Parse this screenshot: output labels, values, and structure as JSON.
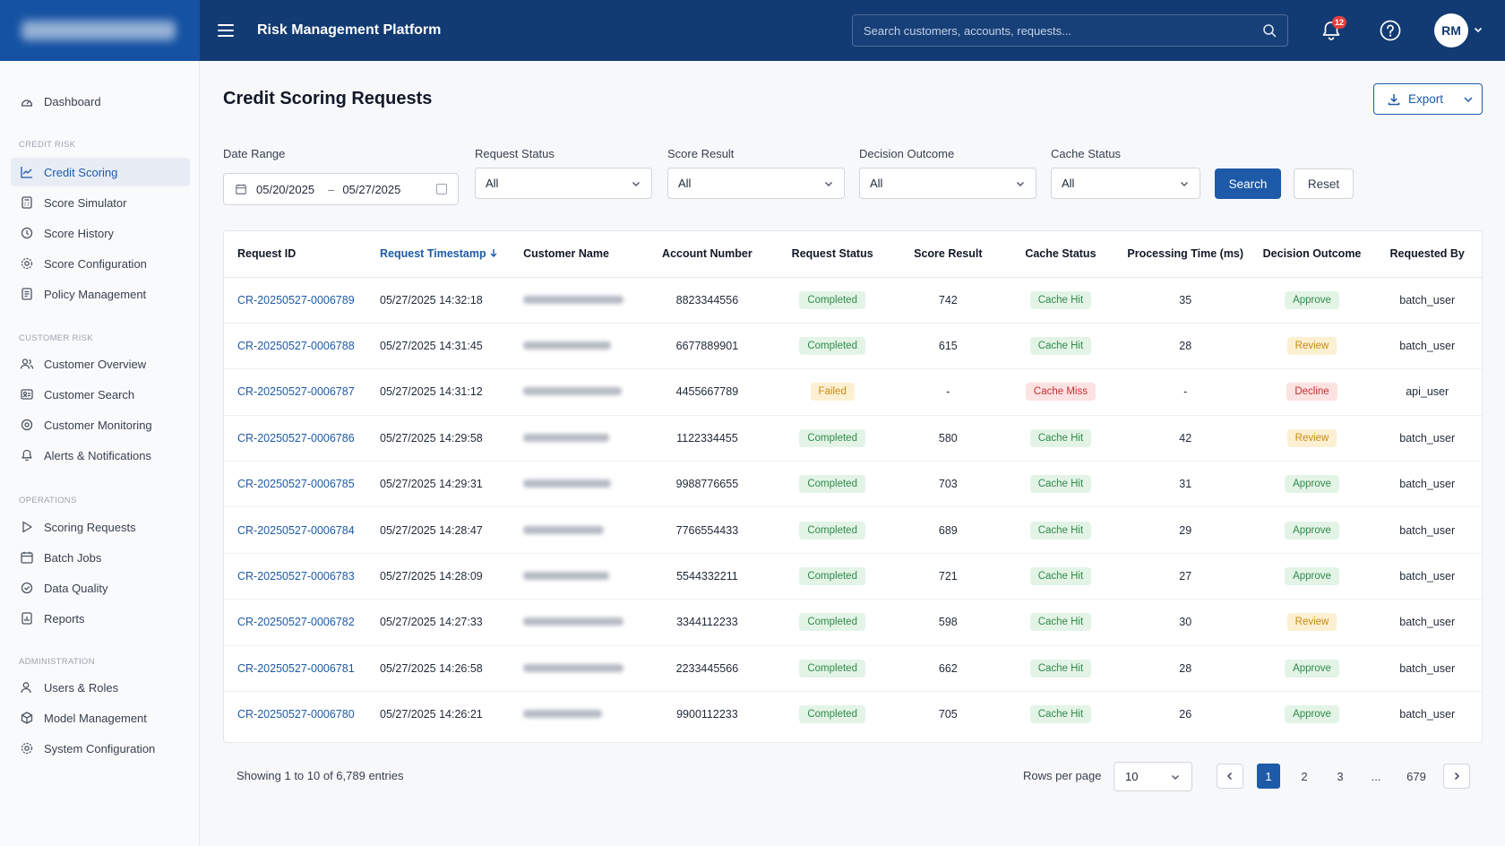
{
  "header": {
    "app_title": "Risk Management Platform",
    "search_placeholder": "Search customers, accounts, requests...",
    "notification_count": "12",
    "avatar_initials": "RM"
  },
  "sidebar": {
    "dashboard": "Dashboard",
    "sections": {
      "credit_risk": "CREDIT RISK",
      "customer_risk": "CUSTOMER RISK",
      "operations": "OPERATIONS",
      "administration": "ADMINISTRATION"
    },
    "credit_risk_items": [
      "Credit Scoring",
      "Score Simulator",
      "Score History",
      "Score Configuration",
      "Policy Management"
    ],
    "customer_risk_items": [
      "Customer Overview",
      "Customer Search",
      "Customer Monitoring",
      "Alerts & Notifications"
    ],
    "operations_items": [
      "Scoring Requests",
      "Batch Jobs",
      "Data Quality",
      "Reports"
    ],
    "administration_items": [
      "Users & Roles",
      "Model Management",
      "System Configuration"
    ],
    "active_item": "Credit Scoring"
  },
  "page": {
    "title": "Credit Scoring Requests",
    "export_label": "Export"
  },
  "filters": {
    "date_range_label": "Date Range",
    "date_from": "05/20/2025",
    "date_to": "05/27/2025",
    "request_status_label": "Request Status",
    "request_status_value": "All",
    "score_result_label": "Score Result",
    "score_result_value": "All",
    "decision_outcome_label": "Decision Outcome",
    "decision_outcome_value": "All",
    "cache_status_label": "Cache Status",
    "cache_status_value": "All",
    "search_label": "Search",
    "reset_label": "Reset"
  },
  "table": {
    "columns": [
      "Request ID",
      "Request Timestamp",
      "Customer Name",
      "Account Number",
      "Request Status",
      "Score Result",
      "Cache Status",
      "Processing Time (ms)",
      "Decision Outcome",
      "Requested By"
    ],
    "sorted_column": "Request Timestamp",
    "rows": [
      {
        "id": "CR-20250527-0006789",
        "timestamp": "05/27/2025 14:32:18",
        "account": "8823344556",
        "status": "Completed",
        "score": "742",
        "cache": "Cache Hit",
        "time": "35",
        "decision": "Approve",
        "by": "batch_user"
      },
      {
        "id": "CR-20250527-0006788",
        "timestamp": "05/27/2025 14:31:45",
        "account": "6677889901",
        "status": "Completed",
        "score": "615",
        "cache": "Cache Hit",
        "time": "28",
        "decision": "Review",
        "by": "batch_user"
      },
      {
        "id": "CR-20250527-0006787",
        "timestamp": "05/27/2025 14:31:12",
        "account": "4455667789",
        "status": "Failed",
        "score": "-",
        "cache": "Cache Miss",
        "time": "-",
        "decision": "Decline",
        "by": "api_user"
      },
      {
        "id": "CR-20250527-0006786",
        "timestamp": "05/27/2025 14:29:58",
        "account": "1122334455",
        "status": "Completed",
        "score": "580",
        "cache": "Cache Hit",
        "time": "42",
        "decision": "Review",
        "by": "batch_user"
      },
      {
        "id": "CR-20250527-0006785",
        "timestamp": "05/27/2025 14:29:31",
        "account": "9988776655",
        "status": "Completed",
        "score": "703",
        "cache": "Cache Hit",
        "time": "31",
        "decision": "Approve",
        "by": "batch_user"
      },
      {
        "id": "CR-20250527-0006784",
        "timestamp": "05/27/2025 14:28:47",
        "account": "7766554433",
        "status": "Completed",
        "score": "689",
        "cache": "Cache Hit",
        "time": "29",
        "decision": "Approve",
        "by": "batch_user"
      },
      {
        "id": "CR-20250527-0006783",
        "timestamp": "05/27/2025 14:28:09",
        "account": "5544332211",
        "status": "Completed",
        "score": "721",
        "cache": "Cache Hit",
        "time": "27",
        "decision": "Approve",
        "by": "batch_user"
      },
      {
        "id": "CR-20250527-0006782",
        "timestamp": "05/27/2025 14:27:33",
        "account": "3344112233",
        "status": "Completed",
        "score": "598",
        "cache": "Cache Hit",
        "time": "30",
        "decision": "Review",
        "by": "batch_user"
      },
      {
        "id": "CR-20250527-0006781",
        "timestamp": "05/27/2025 14:26:58",
        "account": "2233445566",
        "status": "Completed",
        "score": "662",
        "cache": "Cache Hit",
        "time": "28",
        "decision": "Approve",
        "by": "batch_user"
      },
      {
        "id": "CR-20250527-0006780",
        "timestamp": "05/27/2025 14:26:21",
        "account": "9900112233",
        "status": "Completed",
        "score": "705",
        "cache": "Cache Hit",
        "time": "26",
        "decision": "Approve",
        "by": "batch_user"
      }
    ]
  },
  "footer": {
    "showing": "Showing 1 to 10 of 6,789 entries",
    "rows_per_page_label": "Rows per page",
    "rows_per_page_value": "10",
    "pages": [
      "1",
      "2",
      "3",
      "...",
      "679"
    ],
    "current_page": "1"
  },
  "colors": {
    "header_bg": "#123a73",
    "brand_bg": "#1552a3",
    "accent": "#1d5aa8",
    "success_bg": "#e3f4e7",
    "success_fg": "#2f8a47",
    "warning_bg": "#fdf0d2",
    "warning_fg": "#c98a10",
    "danger_bg": "#fde2e2",
    "danger_fg": "#c53030"
  },
  "icons": {
    "menu": "hamburger-icon",
    "search": "search-icon",
    "notifications": "bell-icon",
    "help": "help-circle-icon",
    "export": "download-icon",
    "calendar": "calendar-icon",
    "sort": "arrow-down-icon"
  }
}
